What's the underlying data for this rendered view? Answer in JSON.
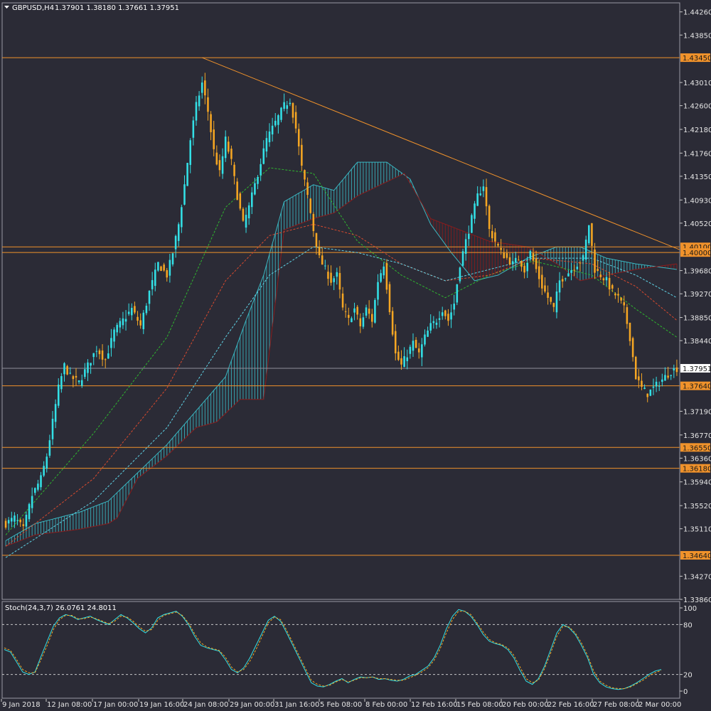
{
  "header": {
    "symbol": "GBPUSD,H4",
    "ohlc": "1.37901 1.38180 1.37661 1.37951"
  },
  "colors": {
    "background": "#2b2b36",
    "bull": "#33e0e6",
    "bear": "#f5a623",
    "level": "#f0922b",
    "grid": "#8f8f99",
    "cloud_bull": "#3ab7c2",
    "cloud_bear": "#8a1c1c",
    "ma_green": "#2fb52f",
    "ma_red": "#d84a2e",
    "ma_cyan": "#5fd3e6"
  },
  "chart_data": [
    {
      "type": "candlestick",
      "title": "GBPUSD,H4",
      "ylim": [
        1.3386,
        1.4442
      ],
      "y_ticks": [
        "1.44260",
        "1.43850",
        "1.43010",
        "1.42600",
        "1.42180",
        "1.41760",
        "1.41350",
        "1.40930",
        "1.40520",
        "1.39680",
        "1.39270",
        "1.38850",
        "1.38440",
        "1.37190",
        "1.36770",
        "1.36360",
        "1.35940",
        "1.35520",
        "1.35110",
        "1.34270",
        "1.33860"
      ],
      "x_ticks": [
        "9 Jan 2018",
        "12 Jan 08:00",
        "17 Jan 00:00",
        "19 Jan 16:00",
        "24 Jan 08:00",
        "29 Jan 00:00",
        "31 Jan 16:00",
        "5 Feb 08:00",
        "8 Feb 00:00",
        "12 Feb 16:00",
        "15 Feb 08:00",
        "20 Feb 00:00",
        "22 Feb 16:00",
        "27 Feb 08:00",
        "2 Mar 00:00"
      ],
      "current_price": "1.37951",
      "price_levels": [
        "1.43450",
        "1.40100",
        "1.40000",
        "1.37640",
        "1.36550",
        "1.36180",
        "1.34640"
      ],
      "anchors": [
        [
          0,
          1.352
        ],
        [
          3,
          1.353
        ],
        [
          6,
          1.351
        ],
        [
          9,
          1.357
        ],
        [
          12,
          1.36
        ],
        [
          14,
          1.364
        ],
        [
          16,
          1.37
        ],
        [
          18,
          1.376
        ],
        [
          20,
          1.38
        ],
        [
          22,
          1.378
        ],
        [
          25,
          1.377
        ],
        [
          28,
          1.38
        ],
        [
          31,
          1.383
        ],
        [
          34,
          1.381
        ],
        [
          37,
          1.386
        ],
        [
          40,
          1.388
        ],
        [
          43,
          1.39
        ],
        [
          46,
          1.387
        ],
        [
          49,
          1.393
        ],
        [
          52,
          1.398
        ],
        [
          55,
          1.396
        ],
        [
          57,
          1.4
        ],
        [
          59,
          1.405
        ],
        [
          61,
          1.412
        ],
        [
          63,
          1.42
        ],
        [
          65,
          1.426
        ],
        [
          67,
          1.43
        ],
        [
          69,
          1.425
        ],
        [
          71,
          1.418
        ],
        [
          73,
          1.414
        ],
        [
          75,
          1.42
        ],
        [
          77,
          1.416
        ],
        [
          79,
          1.41
        ],
        [
          81,
          1.405
        ],
        [
          83,
          1.408
        ],
        [
          85,
          1.412
        ],
        [
          87,
          1.416
        ],
        [
          89,
          1.42
        ],
        [
          91,
          1.422
        ],
        [
          93,
          1.424
        ],
        [
          95,
          1.426
        ],
        [
          97,
          1.427
        ],
        [
          99,
          1.422
        ],
        [
          101,
          1.415
        ],
        [
          103,
          1.41
        ],
        [
          105,
          1.404
        ],
        [
          107,
          1.399
        ],
        [
          109,
          1.397
        ],
        [
          111,
          1.395
        ],
        [
          113,
          1.396
        ],
        [
          115,
          1.39
        ],
        [
          117,
          1.388
        ],
        [
          119,
          1.39
        ],
        [
          121,
          1.387
        ],
        [
          123,
          1.39
        ],
        [
          125,
          1.388
        ],
        [
          127,
          1.395
        ],
        [
          129,
          1.398
        ],
        [
          131,
          1.39
        ],
        [
          133,
          1.382
        ],
        [
          135,
          1.38
        ],
        [
          137,
          1.382
        ],
        [
          139,
          1.384
        ],
        [
          141,
          1.382
        ],
        [
          143,
          1.385
        ],
        [
          145,
          1.387
        ],
        [
          147,
          1.388
        ],
        [
          149,
          1.39
        ],
        [
          151,
          1.388
        ],
        [
          153,
          1.391
        ],
        [
          155,
          1.398
        ],
        [
          157,
          1.402
        ],
        [
          159,
          1.406
        ],
        [
          161,
          1.41
        ],
        [
          163,
          1.412
        ],
        [
          165,
          1.404
        ],
        [
          167,
          1.402
        ],
        [
          169,
          1.4
        ],
        [
          171,
          1.399
        ],
        [
          173,
          1.398
        ],
        [
          175,
          1.399
        ],
        [
          177,
          1.397
        ],
        [
          179,
          1.4
        ],
        [
          181,
          1.397
        ],
        [
          183,
          1.394
        ],
        [
          185,
          1.392
        ],
        [
          187,
          1.39
        ],
        [
          189,
          1.395
        ],
        [
          191,
          1.396
        ],
        [
          193,
          1.397
        ],
        [
          195,
          1.398
        ],
        [
          197,
          1.399
        ],
        [
          199,
          1.405
        ],
        [
          201,
          1.397
        ],
        [
          203,
          1.396
        ],
        [
          205,
          1.395
        ],
        [
          207,
          1.393
        ],
        [
          209,
          1.392
        ],
        [
          211,
          1.39
        ],
        [
          213,
          1.385
        ],
        [
          215,
          1.378
        ],
        [
          217,
          1.376
        ],
        [
          219,
          1.375
        ],
        [
          221,
          1.376
        ],
        [
          223,
          1.377
        ],
        [
          225,
          1.378
        ],
        [
          227,
          1.379
        ],
        [
          229,
          1.3795
        ]
      ],
      "series": [
        {
          "name": "",
          "style": "dashed",
          "color": "#2fb52f",
          "anchors": [
            [
              0,
              1.35
            ],
            [
              30,
              1.368
            ],
            [
              55,
              1.385
            ],
            [
              75,
              1.408
            ],
            [
              90,
              1.415
            ],
            [
              105,
              1.414
            ],
            [
              120,
              1.402
            ],
            [
              135,
              1.396
            ],
            [
              150,
              1.392
            ],
            [
              165,
              1.396
            ],
            [
              180,
              1.3985
            ],
            [
              200,
              1.396
            ],
            [
              215,
              1.39
            ],
            [
              229,
              1.385
            ]
          ]
        },
        {
          "name": "",
          "style": "dashed",
          "color": "#d84a2e",
          "anchors": [
            [
              0,
              1.348
            ],
            [
              30,
              1.36
            ],
            [
              55,
              1.376
            ],
            [
              75,
              1.395
            ],
            [
              90,
              1.403
            ],
            [
              105,
              1.405
            ],
            [
              120,
              1.403
            ],
            [
              135,
              1.398
            ],
            [
              150,
              1.395
            ],
            [
              165,
              1.396
            ],
            [
              180,
              1.399
            ],
            [
              200,
              1.398
            ],
            [
              215,
              1.394
            ],
            [
              229,
              1.388
            ]
          ]
        },
        {
          "name": "",
          "style": "dashed",
          "color": "#5fd3e6",
          "anchors": [
            [
              0,
              1.346
            ],
            [
              30,
              1.356
            ],
            [
              55,
              1.369
            ],
            [
              75,
              1.385
            ],
            [
              90,
              1.396
            ],
            [
              105,
              1.401
            ],
            [
              120,
              1.4
            ],
            [
              135,
              1.398
            ],
            [
              150,
              1.395
            ],
            [
              165,
              1.397
            ],
            [
              180,
              1.399
            ],
            [
              200,
              1.399
            ],
            [
              215,
              1.396
            ],
            [
              229,
              1.392
            ]
          ]
        }
      ],
      "cloud": {
        "span_a": [
          [
            0,
            1.349
          ],
          [
            10,
            1.352
          ],
          [
            25,
            1.354
          ],
          [
            35,
            1.356
          ],
          [
            45,
            1.361
          ],
          [
            55,
            1.366
          ],
          [
            65,
            1.372
          ],
          [
            75,
            1.378
          ],
          [
            82,
            1.388
          ],
          [
            88,
            1.396
          ],
          [
            95,
            1.409
          ],
          [
            105,
            1.412
          ],
          [
            112,
            1.411
          ],
          [
            120,
            1.416
          ],
          [
            130,
            1.416
          ],
          [
            138,
            1.413
          ],
          [
            145,
            1.405
          ],
          [
            152,
            1.4
          ],
          [
            160,
            1.395
          ],
          [
            168,
            1.396
          ],
          [
            178,
            1.399
          ],
          [
            188,
            1.401
          ],
          [
            196,
            1.401
          ],
          [
            205,
            1.399
          ],
          [
            215,
            1.398
          ],
          [
            229,
            1.397
          ]
        ],
        "span_b": [
          [
            0,
            1.348
          ],
          [
            10,
            1.35
          ],
          [
            25,
            1.351
          ],
          [
            35,
            1.352
          ],
          [
            38,
            1.353
          ],
          [
            45,
            1.36
          ],
          [
            55,
            1.364
          ],
          [
            65,
            1.369
          ],
          [
            72,
            1.37
          ],
          [
            80,
            1.374
          ],
          [
            88,
            1.374
          ],
          [
            95,
            1.404
          ],
          [
            105,
            1.406
          ],
          [
            112,
            1.407
          ],
          [
            120,
            1.41
          ],
          [
            128,
            1.412
          ],
          [
            136,
            1.414
          ],
          [
            145,
            1.406
          ],
          [
            155,
            1.404
          ],
          [
            165,
            1.402
          ],
          [
            178,
            1.401
          ],
          [
            188,
            1.398
          ],
          [
            196,
            1.395
          ],
          [
            205,
            1.396
          ],
          [
            215,
            1.397
          ],
          [
            229,
            1.398
          ]
        ]
      }
    },
    {
      "type": "line",
      "title": "Stoch(24,3,7) 26.0761 24.8011",
      "ylim": [
        0,
        100
      ],
      "y_ticks": [
        "100",
        "80",
        "20",
        "0"
      ],
      "levels": [
        80,
        20
      ],
      "series": [
        {
          "name": "",
          "color": "#33e0e6",
          "values": [
            50,
            47,
            35,
            23,
            20,
            23,
            42,
            60,
            78,
            88,
            92,
            90,
            86,
            88,
            90,
            86,
            83,
            80,
            86,
            92,
            88,
            82,
            75,
            70,
            76,
            88,
            92,
            94,
            96,
            90,
            80,
            66,
            55,
            52,
            50,
            48,
            38,
            26,
            22,
            28,
            40,
            55,
            70,
            85,
            90,
            84,
            70,
            55,
            40,
            25,
            10,
            6,
            5,
            8,
            12,
            15,
            10,
            14,
            17,
            16,
            17,
            14,
            15,
            13,
            12,
            14,
            18,
            20,
            25,
            30,
            40,
            55,
            75,
            90,
            98,
            96,
            90,
            80,
            68,
            60,
            57,
            55,
            50,
            40,
            25,
            12,
            8,
            15,
            30,
            50,
            70,
            80,
            76,
            68,
            55,
            40,
            20,
            10,
            5,
            3,
            2,
            3,
            6,
            10,
            15,
            20,
            24,
            26
          ]
        },
        {
          "name": "",
          "color": "#f5a623",
          "values": [
            52,
            49,
            38,
            26,
            22,
            22,
            38,
            55,
            74,
            86,
            91,
            91,
            87,
            87,
            89,
            87,
            84,
            81,
            84,
            90,
            89,
            84,
            77,
            72,
            74,
            85,
            91,
            93,
            95,
            91,
            82,
            69,
            58,
            53,
            51,
            49,
            41,
            29,
            23,
            26,
            36,
            50,
            66,
            82,
            89,
            86,
            73,
            58,
            43,
            28,
            13,
            8,
            6,
            7,
            11,
            14,
            11,
            13,
            16,
            16,
            17,
            15,
            15,
            14,
            13,
            13,
            16,
            19,
            23,
            28,
            37,
            51,
            70,
            86,
            96,
            96,
            92,
            82,
            71,
            62,
            58,
            56,
            52,
            43,
            29,
            15,
            10,
            13,
            27,
            46,
            66,
            78,
            77,
            70,
            58,
            43,
            24,
            12,
            7,
            4,
            3,
            3,
            5,
            9,
            13,
            18,
            22,
            25
          ]
        }
      ],
      "x_ticks": [
        "9 Jan 2018",
        "12 Jan 08:00",
        "17 Jan 00:00",
        "19 Jan 16:00",
        "24 Jan 08:00",
        "29 Jan 00:00",
        "31 Jan 16:00",
        "5 Feb 08:00",
        "8 Feb 00:00",
        "12 Feb 16:00",
        "15 Feb 08:00",
        "20 Feb 00:00",
        "22 Feb 16:00",
        "27 Feb 08:00",
        "2 Mar 00:00"
      ]
    }
  ],
  "trendline": {
    "from": [
      67,
      1.4345
    ],
    "to": [
      229,
      1.4005
    ]
  }
}
